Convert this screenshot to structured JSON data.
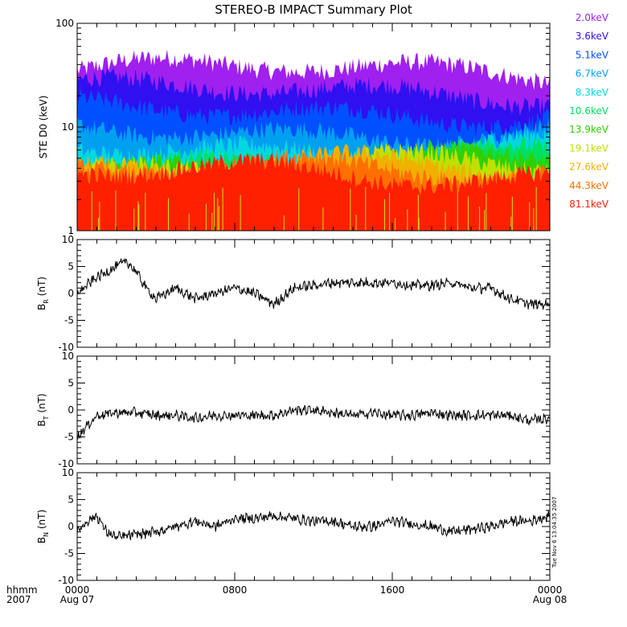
{
  "title": "STEREO-B IMPACT Summary Plot",
  "timestamp": "Tue Nov  6 13:04:35 2007",
  "colors": {
    "background": "#ffffff",
    "axis": "#000000",
    "trace": "#000000"
  },
  "footer": {
    "time_label": "hhmm",
    "year_label": "2007"
  },
  "chart_data": [
    {
      "id": "ste-spectrogram",
      "type": "area",
      "ylabel": "STE D0 (keV)",
      "yscale": "log",
      "ylim": [
        1,
        100
      ],
      "yticks": [
        "1",
        "10",
        "100"
      ],
      "x_range_hours": [
        0,
        24
      ],
      "xtick_labels": [
        "0000",
        "0800",
        "1600",
        "0000"
      ],
      "xtick_dates": [
        "Aug 07",
        "",
        "",
        "Aug 08"
      ],
      "legend_placement": "right",
      "series": [
        {
          "name": "2.0keV",
          "color": "#a020f0",
          "baseline_keV": 35
        },
        {
          "name": "3.6keV",
          "color": "#3010f0",
          "baseline_keV": 22
        },
        {
          "name": "5.1keV",
          "color": "#0050ff",
          "baseline_keV": 14
        },
        {
          "name": "6.7keV",
          "color": "#00a0f0",
          "baseline_keV": 9
        },
        {
          "name": "8.3keV",
          "color": "#00d8e0",
          "baseline_keV": 6.5
        },
        {
          "name": "10.6keV",
          "color": "#00e060",
          "baseline_keV": 5
        },
        {
          "name": "13.9keV",
          "color": "#30d000",
          "baseline_keV": 4.5
        },
        {
          "name": "19.1keV",
          "color": "#c0e000",
          "baseline_keV": 4.2
        },
        {
          "name": "27.6keV",
          "color": "#f0b000",
          "baseline_keV": 4
        },
        {
          "name": "44.3keV",
          "color": "#ff7000",
          "baseline_keV": 3.8
        },
        {
          "name": "81.1keV",
          "color": "#ff2000",
          "baseline_keV": 3.5
        }
      ]
    },
    {
      "id": "br",
      "type": "line",
      "ylabel": "BR (nT)",
      "ylabel_main": "B",
      "ylabel_sub": "R",
      "ylabel_unit": "(nT)",
      "ylim": [
        -10,
        10
      ],
      "yticks": [
        "10",
        "5",
        "0",
        "-5",
        "-10"
      ],
      "x_range_hours": [
        0,
        24
      ],
      "series": [
        {
          "points": [
            [
              0,
              0
            ],
            [
              0.5,
              1.5
            ],
            [
              1,
              3
            ],
            [
              1.5,
              4
            ],
            [
              2,
              5
            ],
            [
              2.5,
              6
            ],
            [
              3,
              4
            ],
            [
              3.5,
              1
            ],
            [
              4,
              -1
            ],
            [
              5,
              1
            ],
            [
              6,
              -1
            ],
            [
              7,
              0
            ],
            [
              8,
              1
            ],
            [
              9,
              0
            ],
            [
              10,
              -2
            ],
            [
              11,
              1
            ],
            [
              12,
              1.5
            ],
            [
              13,
              2
            ],
            [
              14,
              2
            ],
            [
              15,
              2
            ],
            [
              16,
              2
            ],
            [
              17,
              1.5
            ],
            [
              18,
              1.5
            ],
            [
              19,
              2
            ],
            [
              20,
              1
            ],
            [
              21,
              1
            ],
            [
              22,
              -1
            ],
            [
              23,
              -2
            ],
            [
              24,
              -2
            ]
          ]
        }
      ]
    },
    {
      "id": "bt",
      "type": "line",
      "ylabel": "BT (nT)",
      "ylabel_main": "B",
      "ylabel_sub": "T",
      "ylabel_unit": "(nT)",
      "ylim": [
        -10,
        10
      ],
      "yticks": [
        "10",
        "5",
        "0",
        "-5",
        "-10"
      ],
      "x_range_hours": [
        0,
        24
      ],
      "series": [
        {
          "points": [
            [
              0,
              -5
            ],
            [
              0.5,
              -3
            ],
            [
              1,
              -1
            ],
            [
              2,
              -0.5
            ],
            [
              3,
              -0.5
            ],
            [
              4,
              -1
            ],
            [
              5,
              -1
            ],
            [
              6,
              -1.5
            ],
            [
              7,
              -1
            ],
            [
              8,
              -1
            ],
            [
              9,
              -1
            ],
            [
              10,
              -1
            ],
            [
              11,
              0
            ],
            [
              12,
              0
            ],
            [
              13,
              -0.5
            ],
            [
              14,
              -1
            ],
            [
              15,
              -0.5
            ],
            [
              16,
              -1
            ],
            [
              17,
              -1
            ],
            [
              18,
              -0.5
            ],
            [
              19,
              -1
            ],
            [
              20,
              -1
            ],
            [
              21,
              -1
            ],
            [
              22,
              -1
            ],
            [
              23,
              -2
            ],
            [
              24,
              -1.5
            ]
          ]
        }
      ]
    },
    {
      "id": "bn",
      "type": "line",
      "ylabel": "BN (nT)",
      "ylabel_main": "B",
      "ylabel_sub": "N",
      "ylabel_unit": "(nT)",
      "ylim": [
        -10,
        10
      ],
      "yticks": [
        "10",
        "5",
        "0",
        "-5",
        "-10"
      ],
      "x_range_hours": [
        0,
        24
      ],
      "xtick_labels": [
        "0000",
        "0800",
        "1600",
        "0000"
      ],
      "xtick_dates": [
        "Aug 07",
        "",
        "",
        "Aug 08"
      ],
      "series": [
        {
          "points": [
            [
              0,
              -1
            ],
            [
              0.5,
              1
            ],
            [
              1,
              2
            ],
            [
              1.5,
              -1
            ],
            [
              2,
              -2
            ],
            [
              3,
              -1.5
            ],
            [
              4,
              -1
            ],
            [
              5,
              0
            ],
            [
              6,
              1
            ],
            [
              7,
              0
            ],
            [
              8,
              1.5
            ],
            [
              9,
              1.5
            ],
            [
              10,
              2
            ],
            [
              11,
              1.5
            ],
            [
              12,
              1
            ],
            [
              13,
              1
            ],
            [
              14,
              0
            ],
            [
              15,
              0
            ],
            [
              16,
              1
            ],
            [
              17,
              0.5
            ],
            [
              18,
              0
            ],
            [
              19,
              -1
            ],
            [
              20,
              -0.5
            ],
            [
              21,
              0
            ],
            [
              22,
              1
            ],
            [
              23,
              1
            ],
            [
              24,
              2
            ]
          ]
        }
      ]
    }
  ]
}
